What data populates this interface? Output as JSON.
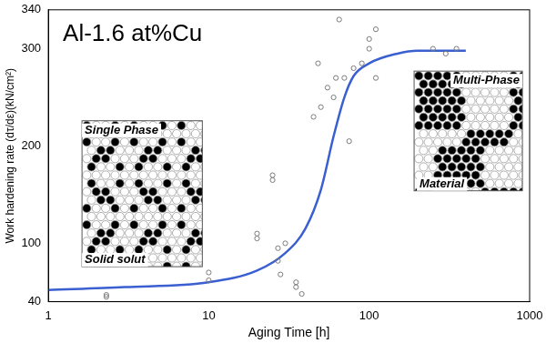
{
  "chart_data": {
    "type": "scatter",
    "title": "Al-1.6 at%Cu",
    "x_label": "Aging Time [h]",
    "y_label": "Work hardening rate (dτ/dε)(kN/cm²)",
    "annotations": [
      "Single Phase",
      "Solid solut",
      "Multi-Phase",
      "Material"
    ],
    "log": "x",
    "grid": false,
    "xlim": [
      1,
      1000
    ],
    "xticks": [
      1,
      10,
      100,
      1000
    ],
    "ylim": [
      40,
      340
    ],
    "yticks": [
      40,
      100,
      200,
      300,
      340
    ],
    "series": [
      {
        "type": "scatter",
        "color": "#7a7a7a",
        "marker": "circle",
        "x": [
          2.3,
          2.3,
          10,
          10,
          20,
          20,
          25,
          25,
          27,
          27,
          28,
          30,
          35,
          35,
          38,
          45,
          48,
          50,
          55,
          60,
          62,
          65,
          70,
          75,
          80,
          90,
          100,
          100,
          110,
          110,
          250,
          300,
          350
        ],
        "values": [
          47,
          45,
          62,
          70,
          110,
          105,
          165,
          170,
          95,
          82,
          68,
          100,
          55,
          60,
          48,
          230,
          285,
          240,
          260,
          250,
          270,
          330,
          270,
          205,
          280,
          285,
          300,
          310,
          270,
          320,
          300,
          295,
          300
        ]
      },
      {
        "type": "line",
        "color": "#3a5fd0",
        "line_style": "solid",
        "x": [
          1,
          3,
          10,
          20,
          30,
          40,
          50,
          60,
          70,
          80,
          100,
          150,
          200,
          400
        ],
        "values": [
          52,
          55,
          60,
          72,
          90,
          115,
          155,
          210,
          250,
          272,
          285,
          295,
          298,
          298
        ]
      }
    ]
  }
}
